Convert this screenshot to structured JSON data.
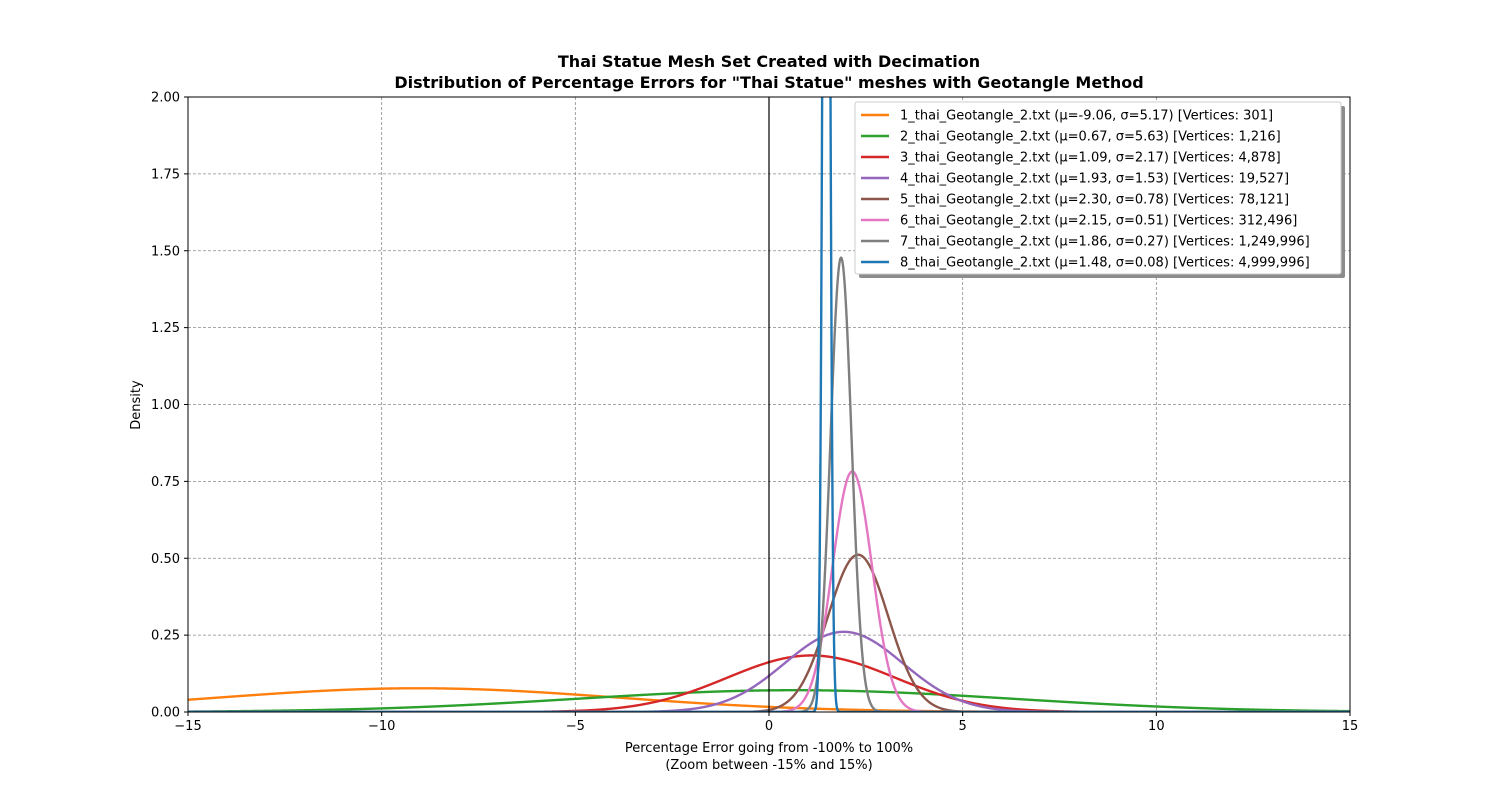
{
  "chart_data": {
    "type": "line",
    "title": "Thai Statue Mesh Set Created with Decimation",
    "subtitle": "Distribution of Percentage Errors for \"Thai Statue\" meshes with Geotangle Method",
    "xlabel": "Percentage Error going from -100% to 100%",
    "xlabel2": "(Zoom between -15% and 15%)",
    "ylabel": "Density",
    "xlim": [
      -15,
      15
    ],
    "ylim": [
      0,
      2.0
    ],
    "xticks": [
      -15,
      -10,
      -5,
      0,
      5,
      10,
      15
    ],
    "xtick_labels": [
      "−15",
      "−10",
      "−5",
      "0",
      "5",
      "10",
      "15"
    ],
    "yticks": [
      0,
      0.25,
      0.5,
      0.75,
      1.0,
      1.25,
      1.5,
      1.75,
      2.0
    ],
    "ytick_labels": [
      "0.00",
      "0.25",
      "0.50",
      "0.75",
      "1.00",
      "1.25",
      "1.50",
      "1.75",
      "2.00"
    ],
    "grid": true,
    "legend_position": "top-right",
    "reference_line_x": 0,
    "series": [
      {
        "name": "1_thai_Geotangle_2.txt (μ=-9.06, σ=5.17) [Vertices: 301]",
        "mu": -9.06,
        "sigma": 5.17,
        "color": "#ff7f0e"
      },
      {
        "name": "2_thai_Geotangle_2.txt (μ=0.67, σ=5.63) [Vertices: 1,216]",
        "mu": 0.67,
        "sigma": 5.63,
        "color": "#2ca02c"
      },
      {
        "name": "3_thai_Geotangle_2.txt (μ=1.09, σ=2.17) [Vertices: 4,878]",
        "mu": 1.09,
        "sigma": 2.17,
        "color": "#d62728"
      },
      {
        "name": "4_thai_Geotangle_2.txt (μ=1.93, σ=1.53) [Vertices: 19,527]",
        "mu": 1.93,
        "sigma": 1.53,
        "color": "#9467bd"
      },
      {
        "name": "5_thai_Geotangle_2.txt (μ=2.30, σ=0.78) [Vertices: 78,121]",
        "mu": 2.3,
        "sigma": 0.78,
        "color": "#8c564b"
      },
      {
        "name": "6_thai_Geotangle_2.txt (μ=2.15, σ=0.51) [Vertices: 312,496]",
        "mu": 2.15,
        "sigma": 0.51,
        "color": "#e377c2"
      },
      {
        "name": "7_thai_Geotangle_2.txt (μ=1.86, σ=0.27) [Vertices: 1,249,996]",
        "mu": 1.86,
        "sigma": 0.27,
        "color": "#7f7f7f"
      },
      {
        "name": "8_thai_Geotangle_2.txt (μ=1.48, σ=0.08) [Vertices: 4,999,996]",
        "mu": 1.48,
        "sigma": 0.08,
        "color": "#1f77b4"
      }
    ]
  }
}
